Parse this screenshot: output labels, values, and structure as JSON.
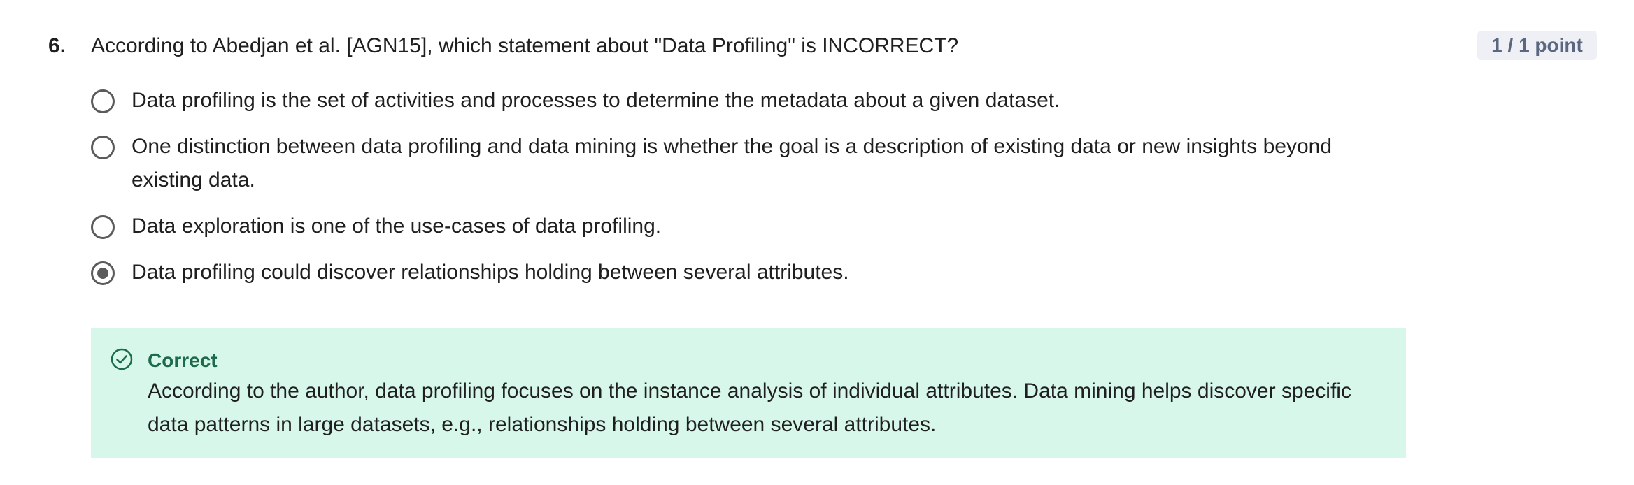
{
  "question": {
    "number": "6.",
    "text": "According to Abedjan et al. [AGN15], which statement about \"Data Profiling\" is INCORRECT?",
    "points": "1 / 1 point"
  },
  "options": [
    {
      "label": "Data profiling is the set of activities and processes to determine the metadata about a given dataset.",
      "selected": false
    },
    {
      "label": "One distinction between data profiling and data mining is whether the goal is a description of existing data or new insights beyond existing data.",
      "selected": false
    },
    {
      "label": "Data exploration is one of the use-cases of data profiling.",
      "selected": false
    },
    {
      "label": "Data profiling could discover relationships holding between several attributes.",
      "selected": true
    }
  ],
  "feedback": {
    "title": "Correct",
    "text": "According to the author, data profiling focuses on the instance analysis of individual attributes. Data mining helps discover specific data patterns in large datasets, e.g., relationships holding between several attributes.",
    "icon": "check-circle-icon"
  },
  "colors": {
    "feedback_background": "#d6f7ea",
    "feedback_title": "#1e6b4b",
    "points_badge_background": "#eef0f5",
    "points_badge_text": "#5b6780",
    "radio": "#5b5b5b"
  }
}
